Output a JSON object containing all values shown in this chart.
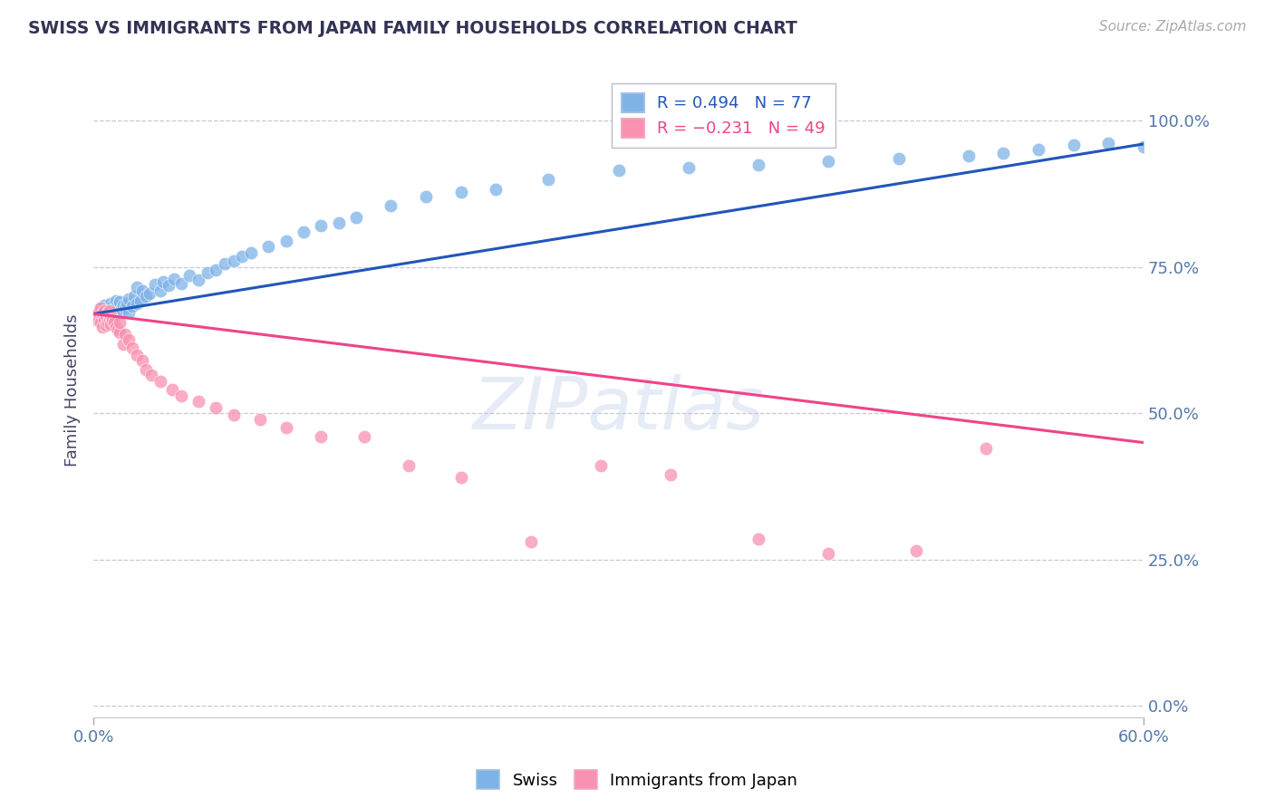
{
  "title": "SWISS VS IMMIGRANTS FROM JAPAN FAMILY HOUSEHOLDS CORRELATION CHART",
  "source": "Source: ZipAtlas.com",
  "ylabel": "Family Households",
  "right_yticks": [
    0.0,
    0.25,
    0.5,
    0.75,
    1.0
  ],
  "right_yticklabels": [
    "0.0%",
    "25.0%",
    "50.0%",
    "75.0%",
    "100.0%"
  ],
  "xlim": [
    0.0,
    0.6
  ],
  "ylim": [
    -0.02,
    1.1
  ],
  "legend_blue_r": "R = 0.494",
  "legend_blue_n": "N = 77",
  "legend_pink_r": "R = −0.231",
  "legend_pink_n": "N = 49",
  "blue_color": "#7EB3E8",
  "pink_color": "#F991B0",
  "blue_line_color": "#2255BB",
  "pink_line_color": "#EE4488",
  "blue_scatter_edge": "#A8C8F0",
  "pink_scatter_edge": "#FFB8CC",
  "swiss_x": [
    0.002,
    0.003,
    0.004,
    0.004,
    0.005,
    0.005,
    0.006,
    0.006,
    0.007,
    0.007,
    0.008,
    0.008,
    0.009,
    0.009,
    0.01,
    0.01,
    0.01,
    0.011,
    0.011,
    0.012,
    0.012,
    0.013,
    0.013,
    0.014,
    0.014,
    0.015,
    0.015,
    0.016,
    0.017,
    0.018,
    0.019,
    0.02,
    0.02,
    0.022,
    0.023,
    0.025,
    0.025,
    0.027,
    0.028,
    0.03,
    0.032,
    0.035,
    0.038,
    0.04,
    0.043,
    0.046,
    0.05,
    0.055,
    0.06,
    0.065,
    0.07,
    0.075,
    0.08,
    0.085,
    0.09,
    0.1,
    0.11,
    0.12,
    0.13,
    0.14,
    0.15,
    0.17,
    0.19,
    0.21,
    0.23,
    0.26,
    0.3,
    0.34,
    0.38,
    0.42,
    0.46,
    0.5,
    0.52,
    0.54,
    0.56,
    0.58,
    0.6
  ],
  "swiss_y": [
    0.67,
    0.665,
    0.66,
    0.68,
    0.655,
    0.672,
    0.668,
    0.685,
    0.66,
    0.675,
    0.662,
    0.678,
    0.665,
    0.683,
    0.67,
    0.66,
    0.688,
    0.672,
    0.683,
    0.668,
    0.68,
    0.675,
    0.692,
    0.67,
    0.685,
    0.672,
    0.69,
    0.678,
    0.685,
    0.68,
    0.688,
    0.672,
    0.695,
    0.683,
    0.7,
    0.688,
    0.715,
    0.692,
    0.71,
    0.7,
    0.705,
    0.72,
    0.71,
    0.725,
    0.718,
    0.73,
    0.722,
    0.735,
    0.728,
    0.74,
    0.745,
    0.755,
    0.76,
    0.768,
    0.775,
    0.785,
    0.795,
    0.81,
    0.82,
    0.825,
    0.835,
    0.855,
    0.87,
    0.878,
    0.882,
    0.9,
    0.915,
    0.92,
    0.925,
    0.93,
    0.935,
    0.94,
    0.945,
    0.95,
    0.958,
    0.962,
    0.955
  ],
  "japan_x": [
    0.002,
    0.003,
    0.004,
    0.004,
    0.005,
    0.005,
    0.006,
    0.006,
    0.007,
    0.007,
    0.008,
    0.008,
    0.009,
    0.009,
    0.01,
    0.01,
    0.011,
    0.012,
    0.013,
    0.014,
    0.015,
    0.015,
    0.017,
    0.018,
    0.02,
    0.022,
    0.025,
    0.028,
    0.03,
    0.033,
    0.038,
    0.045,
    0.05,
    0.06,
    0.07,
    0.08,
    0.095,
    0.11,
    0.13,
    0.155,
    0.18,
    0.21,
    0.25,
    0.29,
    0.33,
    0.38,
    0.42,
    0.47,
    0.51
  ],
  "japan_y": [
    0.66,
    0.672,
    0.655,
    0.68,
    0.648,
    0.67,
    0.66,
    0.675,
    0.65,
    0.668,
    0.655,
    0.672,
    0.66,
    0.675,
    0.652,
    0.668,
    0.66,
    0.655,
    0.648,
    0.642,
    0.638,
    0.655,
    0.618,
    0.635,
    0.625,
    0.612,
    0.6,
    0.59,
    0.575,
    0.565,
    0.555,
    0.54,
    0.53,
    0.52,
    0.51,
    0.498,
    0.49,
    0.475,
    0.46,
    0.46,
    0.41,
    0.39,
    0.28,
    0.41,
    0.395,
    0.285,
    0.26,
    0.265,
    0.44
  ],
  "swiss_line_x": [
    0.0,
    0.6
  ],
  "swiss_line_y": [
    0.67,
    0.96
  ],
  "japan_line_x": [
    0.0,
    0.6
  ],
  "japan_line_y": [
    0.67,
    0.45
  ]
}
